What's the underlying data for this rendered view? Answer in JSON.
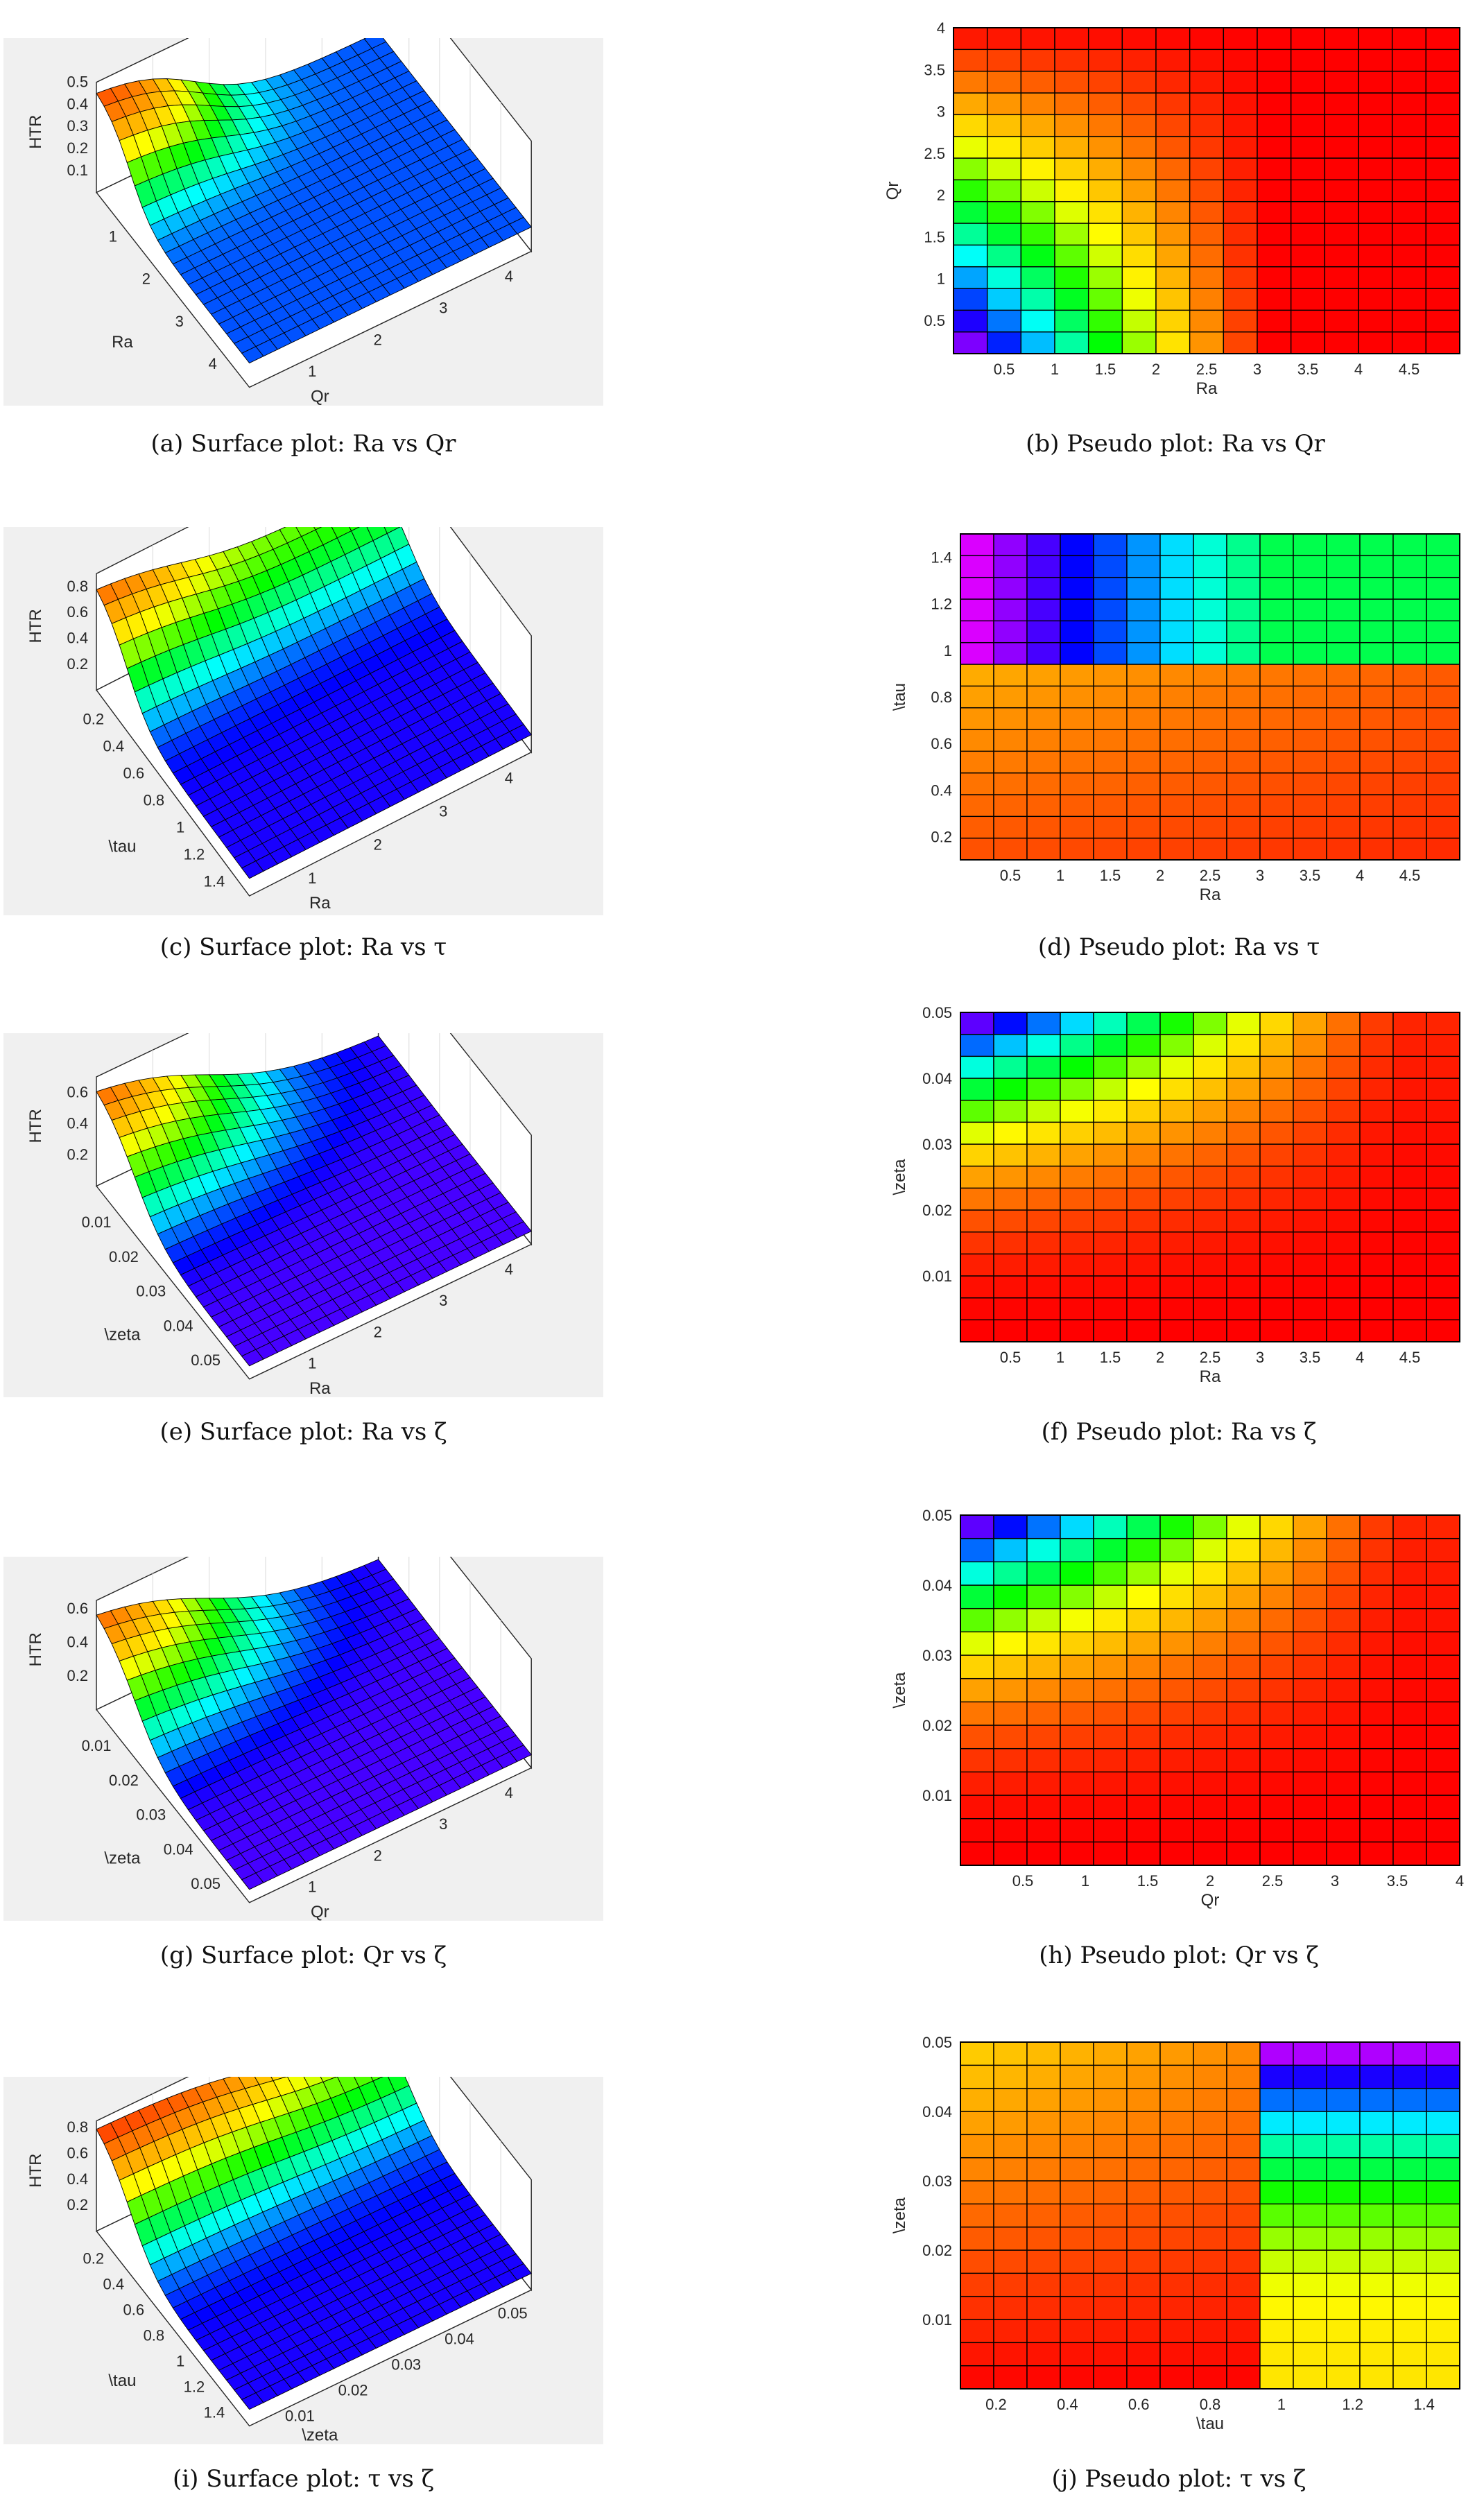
{
  "captions": {
    "a": "(a) Surface plot: Ra vs Qr",
    "b": "(b) Pseudo plot: Ra vs Qr",
    "c": "(c) Surface plot: Ra vs τ",
    "d": "(d) Pseudo plot: Ra vs τ",
    "e": "(e) Surface plot: Ra vs ζ",
    "f": "(f) Pseudo plot: Ra vs ζ",
    "g": "(g) Surface plot: Qr vs ζ",
    "h": "(h) Pseudo plot: Qr vs ζ",
    "i": "(i) Surface plot: τ vs ζ",
    "j": "(j) Pseudo plot: τ vs ζ"
  },
  "colors": {
    "surface_background": "#f0f0f0",
    "grid_line": "#000000",
    "colormap": [
      "#ff0000",
      "#ff8000",
      "#ffff00",
      "#00ff00",
      "#00ffff",
      "#0000ff",
      "#ff00ff"
    ]
  },
  "chart_data": [
    {
      "id": "a",
      "type": "surface",
      "zlabel": "HTR",
      "xlabel": "Ra",
      "ylabel": "Qr",
      "xticks": [
        "1",
        "2",
        "3",
        "4"
      ],
      "yticks": [
        "1",
        "2",
        "3",
        "4"
      ],
      "zticks": [
        "0.1",
        "0.2",
        "0.3",
        "0.4",
        "0.5"
      ],
      "xlim": [
        0.1,
        5
      ],
      "ylim": [
        0.1,
        4
      ],
      "zlim": [
        0,
        0.5
      ],
      "zmax": 0.5,
      "grid": true
    },
    {
      "id": "b",
      "type": "heatmap",
      "xlabel": "Ra",
      "ylabel": "Qr",
      "xticks": [
        "0.5",
        "1",
        "1.5",
        "2",
        "2.5",
        "3",
        "3.5",
        "4",
        "4.5"
      ],
      "yticks": [
        "0.5",
        "1",
        "1.5",
        "2",
        "2.5",
        "3",
        "3.5",
        "4"
      ],
      "xlim": [
        0,
        5
      ],
      "ylim": [
        0.1,
        4
      ],
      "grid_size": [
        15,
        15
      ]
    },
    {
      "id": "c",
      "type": "surface",
      "zlabel": "HTR",
      "xlabel": "\\tau",
      "ylabel": "Ra",
      "xticks": [
        "0.2",
        "0.4",
        "0.6",
        "0.8",
        "1",
        "1.2",
        "1.4"
      ],
      "yticks": [
        "1",
        "2",
        "3",
        "4"
      ],
      "zticks": [
        "0.2",
        "0.4",
        "0.6",
        "0.8"
      ],
      "xlim": [
        0.1,
        1.5
      ],
      "ylim": [
        0.1,
        5
      ],
      "zlim": [
        0,
        0.9
      ],
      "zmax": 0.9,
      "grid": true
    },
    {
      "id": "d",
      "type": "heatmap",
      "xlabel": "Ra",
      "ylabel": "\\tau",
      "xticks": [
        "0.5",
        "1",
        "1.5",
        "2",
        "2.5",
        "3",
        "3.5",
        "4",
        "4.5"
      ],
      "yticks": [
        "0.2",
        "0.4",
        "0.6",
        "0.8",
        "1",
        "1.2",
        "1.4"
      ],
      "xlim": [
        0,
        5
      ],
      "ylim": [
        0.1,
        1.5
      ],
      "grid_size": [
        15,
        15
      ]
    },
    {
      "id": "e",
      "type": "surface",
      "zlabel": "HTR",
      "xlabel": "\\zeta",
      "ylabel": "Ra",
      "xticks": [
        "0.01",
        "0.02",
        "0.03",
        "0.04",
        "0.05"
      ],
      "yticks": [
        "1",
        "2",
        "3",
        "4"
      ],
      "zticks": [
        "0.2",
        "0.4",
        "0.6"
      ],
      "xlim": [
        0,
        0.05
      ],
      "ylim": [
        0.1,
        5
      ],
      "zlim": [
        0,
        0.7
      ],
      "zmax": 0.7,
      "grid": true
    },
    {
      "id": "f",
      "type": "heatmap",
      "xlabel": "Ra",
      "ylabel": "\\zeta",
      "xticks": [
        "0.5",
        "1",
        "1.5",
        "2",
        "2.5",
        "3",
        "3.5",
        "4",
        "4.5"
      ],
      "yticks": [
        "0.01",
        "0.02",
        "0.03",
        "0.04",
        "0.05"
      ],
      "xlim": [
        0,
        5
      ],
      "ylim": [
        0,
        0.05
      ],
      "grid_size": [
        15,
        15
      ]
    },
    {
      "id": "g",
      "type": "surface",
      "zlabel": "HTR",
      "xlabel": "\\zeta",
      "ylabel": "Qr",
      "xticks": [
        "0.01",
        "0.02",
        "0.03",
        "0.04",
        "0.05"
      ],
      "yticks": [
        "1",
        "2",
        "3",
        "4"
      ],
      "zticks": [
        "0.2",
        "0.4",
        "0.6"
      ],
      "xlim": [
        0,
        0.05
      ],
      "ylim": [
        0.1,
        4
      ],
      "zlim": [
        0,
        0.65
      ],
      "zmax": 0.65,
      "grid": true
    },
    {
      "id": "h",
      "type": "heatmap",
      "xlabel": "Qr",
      "ylabel": "\\zeta",
      "xticks": [
        "0.5",
        "1",
        "1.5",
        "2",
        "2.5",
        "3",
        "3.5",
        "4"
      ],
      "yticks": [
        "0.01",
        "0.02",
        "0.03",
        "0.04",
        "0.05"
      ],
      "xlim": [
        0,
        4
      ],
      "ylim": [
        0,
        0.05
      ],
      "grid_size": [
        15,
        15
      ]
    },
    {
      "id": "i",
      "type": "surface",
      "zlabel": "HTR",
      "xlabel": "\\tau",
      "ylabel": "\\zeta",
      "xticks": [
        "0.2",
        "0.4",
        "0.6",
        "0.8",
        "1",
        "1.2",
        "1.4"
      ],
      "yticks": [
        "0.01",
        "0.02",
        "0.03",
        "0.04",
        "0.05"
      ],
      "zticks": [
        "0.2",
        "0.4",
        "0.6",
        "0.8"
      ],
      "xlim": [
        0.1,
        1.5
      ],
      "ylim": [
        0,
        0.05
      ],
      "zlim": [
        0,
        0.85
      ],
      "zmax": 0.85,
      "grid": true
    },
    {
      "id": "j",
      "type": "heatmap",
      "xlabel": "\\tau",
      "ylabel": "\\zeta",
      "xticks": [
        "0.2",
        "0.4",
        "0.6",
        "0.8",
        "1",
        "1.2",
        "1.4"
      ],
      "yticks": [
        "0.01",
        "0.02",
        "0.03",
        "0.04",
        "0.05"
      ],
      "xlim": [
        0.1,
        1.5
      ],
      "ylim": [
        0,
        0.05
      ],
      "grid_size": [
        15,
        15
      ]
    }
  ]
}
